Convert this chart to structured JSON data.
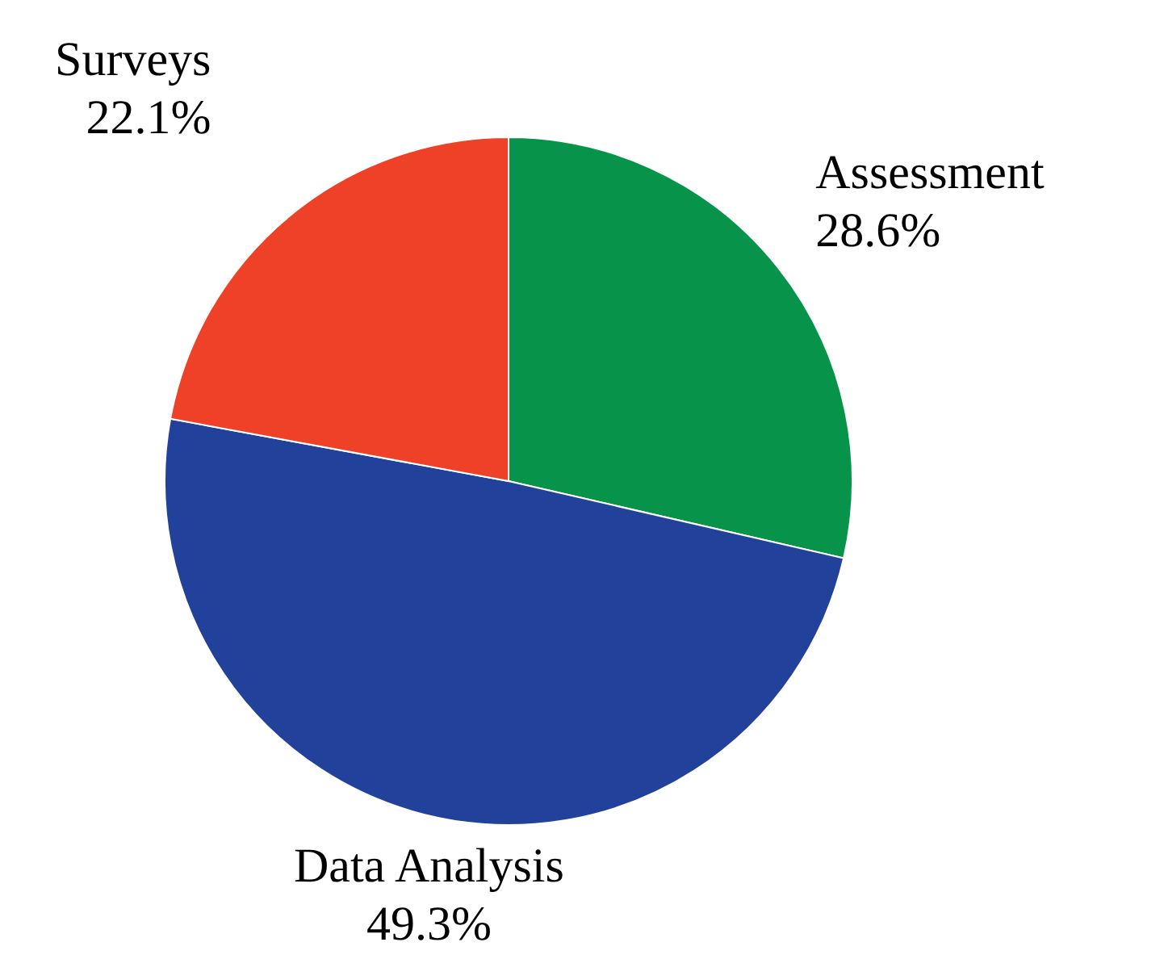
{
  "chart_data": {
    "type": "pie",
    "categories": [
      "Assessment",
      "Data Analysis",
      "Surveys"
    ],
    "values": [
      28.6,
      49.3,
      22.1
    ],
    "value_labels": [
      "28.6%",
      "49.3%",
      "22.1%"
    ],
    "colors": [
      "#07944a",
      "#22419b",
      "#ee4127"
    ]
  }
}
